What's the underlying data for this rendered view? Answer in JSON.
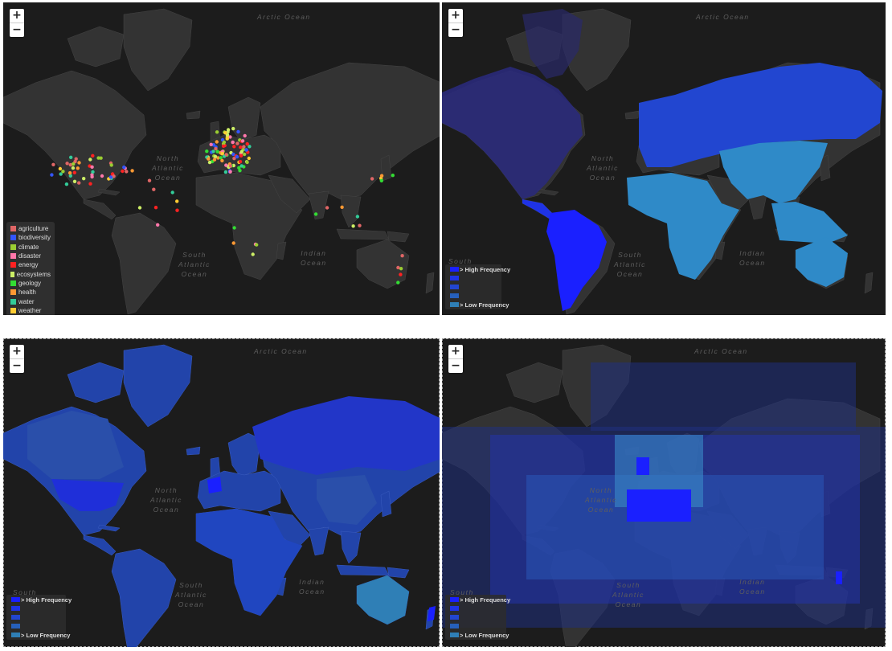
{
  "zoom": {
    "in_label": "+",
    "out_label": "−"
  },
  "ocean_labels": {
    "arctic": "Arctic Ocean",
    "north_atlantic": "North\nAtlantic\nOcean",
    "south_atlantic": "South\nAtlantic\nOcean",
    "indian": "Indian\nOcean",
    "south": "South"
  },
  "panels": [
    {
      "id": "topic-markers",
      "legend": {
        "items": [
          {
            "label": "agriculture",
            "color": "#e06666"
          },
          {
            "label": "biodiversity",
            "color": "#3355ff"
          },
          {
            "label": "climate",
            "color": "#9acd32"
          },
          {
            "label": "disaster",
            "color": "#ff77aa"
          },
          {
            "label": "energy",
            "color": "#ff2222"
          },
          {
            "label": "ecosystems",
            "color": "#ccee66"
          },
          {
            "label": "geology",
            "color": "#33dd33"
          },
          {
            "label": "health",
            "color": "#ff9933"
          },
          {
            "label": "water",
            "color": "#33cc99"
          },
          {
            "label": "weather",
            "color": "#ffcc33"
          }
        ]
      }
    },
    {
      "id": "frequency-continent",
      "legend": {
        "high": "> High Frequency",
        "low": "> Low Frequency"
      }
    },
    {
      "id": "frequency-country",
      "legend": {
        "high": "> High Frequency",
        "low": "> Low Frequency"
      }
    },
    {
      "id": "frequency-grid",
      "legend": {
        "high": "> High Frequency",
        "low": "> Low Frequency"
      }
    }
  ],
  "colors": {
    "land": "#333333",
    "freq_high": "#1a20ff",
    "freq_2": "#1f33e6",
    "freq_3": "#2246d0",
    "freq_4": "#2660bb",
    "freq_low": "#2f7fb6"
  }
}
